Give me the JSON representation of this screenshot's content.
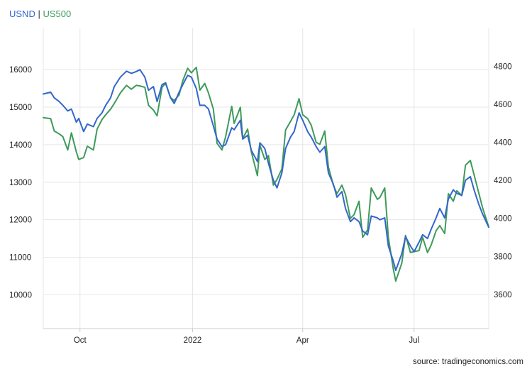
{
  "legend": {
    "series1": "USND",
    "separator": "|",
    "series2": "US500"
  },
  "source": "source: tradingeconomics.com",
  "colors": {
    "usnd": "#3366cc",
    "us500": "#3f9a5b",
    "grid": "#e6e6e6",
    "axis": "#cccccc"
  },
  "chart_data": {
    "type": "line",
    "grid": true,
    "legend_position": "top-left",
    "x_tick_labels": [
      "Oct",
      "2022",
      "Apr",
      "Jul"
    ],
    "x_tick_dates": [
      "2021-10-01",
      "2022-01-01",
      "2022-04-01",
      "2022-07-01"
    ],
    "x_range": [
      "2021-09-01",
      "2022-08-31"
    ],
    "left_axis": {
      "ticks": [
        10000,
        11000,
        12000,
        13000,
        14000,
        15000,
        16000
      ],
      "range": [
        9100,
        17100
      ]
    },
    "right_axis": {
      "ticks": [
        3600,
        3800,
        4000,
        4200,
        4400,
        4600,
        4800
      ],
      "range": [
        3420,
        5000
      ]
    },
    "series": [
      {
        "name": "USND",
        "axis": "left",
        "points": [
          [
            "2021-09-01",
            15350
          ],
          [
            "2021-09-07",
            15400
          ],
          [
            "2021-09-10",
            15250
          ],
          [
            "2021-09-14",
            15150
          ],
          [
            "2021-09-17",
            15050
          ],
          [
            "2021-09-21",
            14900
          ],
          [
            "2021-09-24",
            14950
          ],
          [
            "2021-09-28",
            14600
          ],
          [
            "2021-09-30",
            14700
          ],
          [
            "2021-10-04",
            14350
          ],
          [
            "2021-10-07",
            14550
          ],
          [
            "2021-10-12",
            14480
          ],
          [
            "2021-10-15",
            14700
          ],
          [
            "2021-10-19",
            14850
          ],
          [
            "2021-10-22",
            15050
          ],
          [
            "2021-10-26",
            15250
          ],
          [
            "2021-10-29",
            15550
          ],
          [
            "2021-11-03",
            15800
          ],
          [
            "2021-11-08",
            15960
          ],
          [
            "2021-11-12",
            15900
          ],
          [
            "2021-11-16",
            15950
          ],
          [
            "2021-11-19",
            16000
          ],
          [
            "2021-11-23",
            15800
          ],
          [
            "2021-11-26",
            15450
          ],
          [
            "2021-11-30",
            15550
          ],
          [
            "2021-12-03",
            15150
          ],
          [
            "2021-12-07",
            15600
          ],
          [
            "2021-12-10",
            15650
          ],
          [
            "2021-12-14",
            15250
          ],
          [
            "2021-12-17",
            15100
          ],
          [
            "2021-12-21",
            15400
          ],
          [
            "2021-12-24",
            15600
          ],
          [
            "2021-12-28",
            15850
          ],
          [
            "2021-12-31",
            15800
          ],
          [
            "2022-01-04",
            15500
          ],
          [
            "2022-01-07",
            15050
          ],
          [
            "2022-01-11",
            15050
          ],
          [
            "2022-01-14",
            14950
          ],
          [
            "2022-01-18",
            14500
          ],
          [
            "2022-01-21",
            14150
          ],
          [
            "2022-01-25",
            13950
          ],
          [
            "2022-01-28",
            14000
          ],
          [
            "2022-02-02",
            14450
          ],
          [
            "2022-02-04",
            14400
          ],
          [
            "2022-02-09",
            14650
          ],
          [
            "2022-02-11",
            14150
          ],
          [
            "2022-02-15",
            14250
          ],
          [
            "2022-02-18",
            13850
          ],
          [
            "2022-02-23",
            13550
          ],
          [
            "2022-02-25",
            14050
          ],
          [
            "2022-03-01",
            13900
          ],
          [
            "2022-03-04",
            13500
          ],
          [
            "2022-03-08",
            13050
          ],
          [
            "2022-03-11",
            12850
          ],
          [
            "2022-03-15",
            13250
          ],
          [
            "2022-03-18",
            13900
          ],
          [
            "2022-03-22",
            14200
          ],
          [
            "2022-03-25",
            14350
          ],
          [
            "2022-03-29",
            14850
          ],
          [
            "2022-04-01",
            14650
          ],
          [
            "2022-04-05",
            14350
          ],
          [
            "2022-04-08",
            14200
          ],
          [
            "2022-04-12",
            13950
          ],
          [
            "2022-04-15",
            13800
          ],
          [
            "2022-04-19",
            13950
          ],
          [
            "2022-04-22",
            13250
          ],
          [
            "2022-04-26",
            12950
          ],
          [
            "2022-04-29",
            12600
          ],
          [
            "2022-05-03",
            12750
          ],
          [
            "2022-05-06",
            12300
          ],
          [
            "2022-05-10",
            11950
          ],
          [
            "2022-05-13",
            12050
          ],
          [
            "2022-05-17",
            11950
          ],
          [
            "2022-05-20",
            11700
          ],
          [
            "2022-05-24",
            11600
          ],
          [
            "2022-05-27",
            12100
          ],
          [
            "2022-06-01",
            12050
          ],
          [
            "2022-06-03",
            12000
          ],
          [
            "2022-06-07",
            12050
          ],
          [
            "2022-06-10",
            11300
          ],
          [
            "2022-06-14",
            10900
          ],
          [
            "2022-06-16",
            10650
          ],
          [
            "2022-06-21",
            11100
          ],
          [
            "2022-06-24",
            11550
          ],
          [
            "2022-06-28",
            11300
          ],
          [
            "2022-07-01",
            11150
          ],
          [
            "2022-07-05",
            11400
          ],
          [
            "2022-07-08",
            11600
          ],
          [
            "2022-07-12",
            11500
          ],
          [
            "2022-07-15",
            11750
          ],
          [
            "2022-07-19",
            12050
          ],
          [
            "2022-07-22",
            12300
          ],
          [
            "2022-07-26",
            12050
          ],
          [
            "2022-07-29",
            12550
          ],
          [
            "2022-08-02",
            12800
          ],
          [
            "2022-08-05",
            12700
          ],
          [
            "2022-08-09",
            12650
          ],
          [
            "2022-08-12",
            13050
          ],
          [
            "2022-08-16",
            13150
          ],
          [
            "2022-08-19",
            12800
          ],
          [
            "2022-08-23",
            12400
          ],
          [
            "2022-08-26",
            12150
          ],
          [
            "2022-08-31",
            11800
          ]
        ]
      },
      {
        "name": "US500",
        "axis": "right",
        "points": [
          [
            "2021-09-01",
            4530
          ],
          [
            "2021-09-07",
            4525
          ],
          [
            "2021-09-10",
            4460
          ],
          [
            "2021-09-14",
            4445
          ],
          [
            "2021-09-17",
            4430
          ],
          [
            "2021-09-21",
            4360
          ],
          [
            "2021-09-24",
            4450
          ],
          [
            "2021-09-28",
            4350
          ],
          [
            "2021-09-30",
            4310
          ],
          [
            "2021-10-04",
            4320
          ],
          [
            "2021-10-07",
            4380
          ],
          [
            "2021-10-12",
            4360
          ],
          [
            "2021-10-15",
            4470
          ],
          [
            "2021-10-19",
            4520
          ],
          [
            "2021-10-22",
            4545
          ],
          [
            "2021-10-26",
            4575
          ],
          [
            "2021-10-29",
            4605
          ],
          [
            "2021-11-03",
            4660
          ],
          [
            "2021-11-08",
            4700
          ],
          [
            "2021-11-12",
            4680
          ],
          [
            "2021-11-16",
            4700
          ],
          [
            "2021-11-19",
            4697
          ],
          [
            "2021-11-23",
            4690
          ],
          [
            "2021-11-26",
            4595
          ],
          [
            "2021-11-30",
            4570
          ],
          [
            "2021-12-03",
            4540
          ],
          [
            "2021-12-07",
            4690
          ],
          [
            "2021-12-10",
            4710
          ],
          [
            "2021-12-14",
            4635
          ],
          [
            "2021-12-17",
            4620
          ],
          [
            "2021-12-21",
            4650
          ],
          [
            "2021-12-24",
            4725
          ],
          [
            "2021-12-28",
            4790
          ],
          [
            "2021-12-31",
            4766
          ],
          [
            "2022-01-04",
            4795
          ],
          [
            "2022-01-07",
            4675
          ],
          [
            "2022-01-11",
            4710
          ],
          [
            "2022-01-14",
            4660
          ],
          [
            "2022-01-18",
            4575
          ],
          [
            "2022-01-21",
            4395
          ],
          [
            "2022-01-25",
            4360
          ],
          [
            "2022-01-28",
            4430
          ],
          [
            "2022-02-02",
            4590
          ],
          [
            "2022-02-04",
            4500
          ],
          [
            "2022-02-09",
            4585
          ],
          [
            "2022-02-11",
            4420
          ],
          [
            "2022-02-15",
            4470
          ],
          [
            "2022-02-18",
            4350
          ],
          [
            "2022-02-23",
            4225
          ],
          [
            "2022-02-25",
            4385
          ],
          [
            "2022-03-01",
            4310
          ],
          [
            "2022-03-04",
            4330
          ],
          [
            "2022-03-08",
            4175
          ],
          [
            "2022-03-11",
            4205
          ],
          [
            "2022-03-15",
            4260
          ],
          [
            "2022-03-18",
            4465
          ],
          [
            "2022-03-22",
            4510
          ],
          [
            "2022-03-25",
            4545
          ],
          [
            "2022-03-29",
            4630
          ],
          [
            "2022-04-01",
            4545
          ],
          [
            "2022-04-05",
            4525
          ],
          [
            "2022-04-08",
            4490
          ],
          [
            "2022-04-12",
            4400
          ],
          [
            "2022-04-15",
            4390
          ],
          [
            "2022-04-19",
            4460
          ],
          [
            "2022-04-22",
            4270
          ],
          [
            "2022-04-26",
            4175
          ],
          [
            "2022-04-29",
            4130
          ],
          [
            "2022-05-03",
            4175
          ],
          [
            "2022-05-06",
            4125
          ],
          [
            "2022-05-10",
            4000
          ],
          [
            "2022-05-13",
            4020
          ],
          [
            "2022-05-17",
            4090
          ],
          [
            "2022-05-20",
            3900
          ],
          [
            "2022-05-24",
            3940
          ],
          [
            "2022-05-27",
            4160
          ],
          [
            "2022-06-01",
            4100
          ],
          [
            "2022-06-03",
            4110
          ],
          [
            "2022-06-07",
            4160
          ],
          [
            "2022-06-10",
            3900
          ],
          [
            "2022-06-14",
            3735
          ],
          [
            "2022-06-16",
            3670
          ],
          [
            "2022-06-21",
            3765
          ],
          [
            "2022-06-24",
            3910
          ],
          [
            "2022-06-28",
            3820
          ],
          [
            "2022-07-01",
            3825
          ],
          [
            "2022-07-05",
            3830
          ],
          [
            "2022-07-08",
            3900
          ],
          [
            "2022-07-12",
            3820
          ],
          [
            "2022-07-15",
            3860
          ],
          [
            "2022-07-19",
            3935
          ],
          [
            "2022-07-22",
            3962
          ],
          [
            "2022-07-26",
            3920
          ],
          [
            "2022-07-29",
            4130
          ],
          [
            "2022-08-02",
            4090
          ],
          [
            "2022-08-05",
            4145
          ],
          [
            "2022-08-09",
            4120
          ],
          [
            "2022-08-12",
            4280
          ],
          [
            "2022-08-16",
            4305
          ],
          [
            "2022-08-19",
            4230
          ],
          [
            "2022-08-23",
            4130
          ],
          [
            "2022-08-26",
            4055
          ],
          [
            "2022-08-31",
            3955
          ]
        ]
      }
    ]
  }
}
